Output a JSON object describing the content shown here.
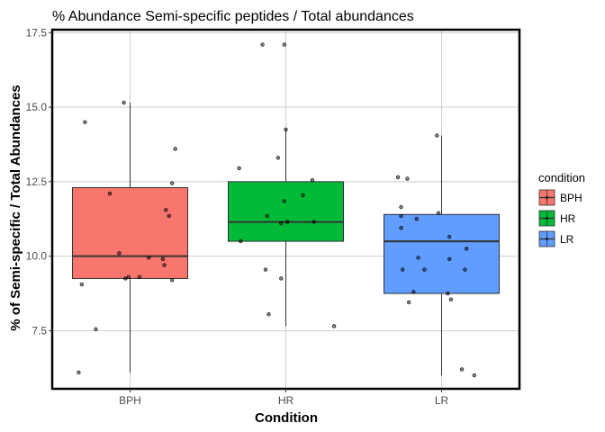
{
  "chart_data": {
    "type": "box",
    "title": "% Abundance Semi-specific peptides / Total abundances",
    "xlabel": "Condition",
    "ylabel": "% of Semi-specific / Total Abundances",
    "categories": [
      "BPH",
      "HR",
      "LR"
    ],
    "ylim": [
      5.55,
      17.6
    ],
    "yticks": [
      7.5,
      10.0,
      12.5,
      15.0,
      17.5
    ],
    "ytick_labels": [
      "7.5",
      "10.0",
      "12.5",
      "15.0",
      "17.5"
    ],
    "grid": true,
    "legend": {
      "title": "condition",
      "position": "right",
      "entries": [
        "BPH",
        "HR",
        "LR"
      ]
    },
    "colors": {
      "BPH": "#F8766D",
      "HR": "#00BA38",
      "LR": "#619CFF"
    },
    "boxes": [
      {
        "category": "BPH",
        "whisker_low": 6.1,
        "q1": 9.25,
        "median": 10.0,
        "q3": 12.3,
        "whisker_high": 15.15
      },
      {
        "category": "HR",
        "whisker_low": 7.65,
        "q1": 10.5,
        "median": 11.15,
        "q3": 12.5,
        "whisker_high": 14.25
      },
      {
        "category": "LR",
        "whisker_low": 6.0,
        "q1": 8.75,
        "median": 10.5,
        "q3": 11.4,
        "whisker_high": 14.05
      }
    ],
    "points": {
      "BPH": [
        {
          "jitter": -0.04,
          "y": 15.15
        },
        {
          "jitter": -0.29,
          "y": 14.5
        },
        {
          "jitter": 0.29,
          "y": 13.6
        },
        {
          "jitter": 0.27,
          "y": 12.45
        },
        {
          "jitter": -0.13,
          "y": 12.1
        },
        {
          "jitter": 0.23,
          "y": 11.55
        },
        {
          "jitter": 0.25,
          "y": 11.35
        },
        {
          "jitter": -0.07,
          "y": 10.1
        },
        {
          "jitter": 0.12,
          "y": 9.95
        },
        {
          "jitter": 0.21,
          "y": 9.9
        },
        {
          "jitter": 0.22,
          "y": 9.7
        },
        {
          "jitter": 0.06,
          "y": 9.3
        },
        {
          "jitter": -0.01,
          "y": 9.3
        },
        {
          "jitter": -0.03,
          "y": 9.25
        },
        {
          "jitter": 0.27,
          "y": 9.2
        },
        {
          "jitter": -0.31,
          "y": 9.05
        },
        {
          "jitter": -0.22,
          "y": 7.55
        },
        {
          "jitter": -0.33,
          "y": 6.1
        }
      ],
      "HR": [
        {
          "jitter": -0.15,
          "y": 17.1
        },
        {
          "jitter": -0.01,
          "y": 17.1
        },
        {
          "jitter": 0.0,
          "y": 14.25
        },
        {
          "jitter": -0.3,
          "y": 12.95
        },
        {
          "jitter": -0.05,
          "y": 13.3
        },
        {
          "jitter": 0.17,
          "y": 12.55
        },
        {
          "jitter": 0.11,
          "y": 12.05
        },
        {
          "jitter": -0.01,
          "y": 11.85
        },
        {
          "jitter": -0.12,
          "y": 11.35
        },
        {
          "jitter": 0.18,
          "y": 11.15
        },
        {
          "jitter": 0.01,
          "y": 11.15
        },
        {
          "jitter": -0.03,
          "y": 11.1
        },
        {
          "jitter": -0.29,
          "y": 10.5
        },
        {
          "jitter": -0.13,
          "y": 9.55
        },
        {
          "jitter": -0.03,
          "y": 9.25
        },
        {
          "jitter": -0.11,
          "y": 8.05
        },
        {
          "jitter": 0.31,
          "y": 7.65
        }
      ],
      "LR": [
        {
          "jitter": -0.03,
          "y": 14.05
        },
        {
          "jitter": -0.28,
          "y": 12.65
        },
        {
          "jitter": -0.22,
          "y": 12.6
        },
        {
          "jitter": -0.26,
          "y": 11.65
        },
        {
          "jitter": -0.26,
          "y": 11.35
        },
        {
          "jitter": -0.16,
          "y": 11.25
        },
        {
          "jitter": -0.02,
          "y": 11.45
        },
        {
          "jitter": -0.26,
          "y": 10.95
        },
        {
          "jitter": 0.05,
          "y": 10.65
        },
        {
          "jitter": 0.16,
          "y": 10.25
        },
        {
          "jitter": -0.15,
          "y": 9.95
        },
        {
          "jitter": 0.05,
          "y": 9.9
        },
        {
          "jitter": -0.25,
          "y": 9.55
        },
        {
          "jitter": -0.11,
          "y": 9.55
        },
        {
          "jitter": 0.15,
          "y": 9.55
        },
        {
          "jitter": -0.18,
          "y": 8.8
        },
        {
          "jitter": 0.04,
          "y": 8.75
        },
        {
          "jitter": 0.06,
          "y": 8.55
        },
        {
          "jitter": -0.21,
          "y": 8.45
        },
        {
          "jitter": 0.13,
          "y": 6.2
        },
        {
          "jitter": 0.21,
          "y": 6.0
        }
      ]
    }
  }
}
